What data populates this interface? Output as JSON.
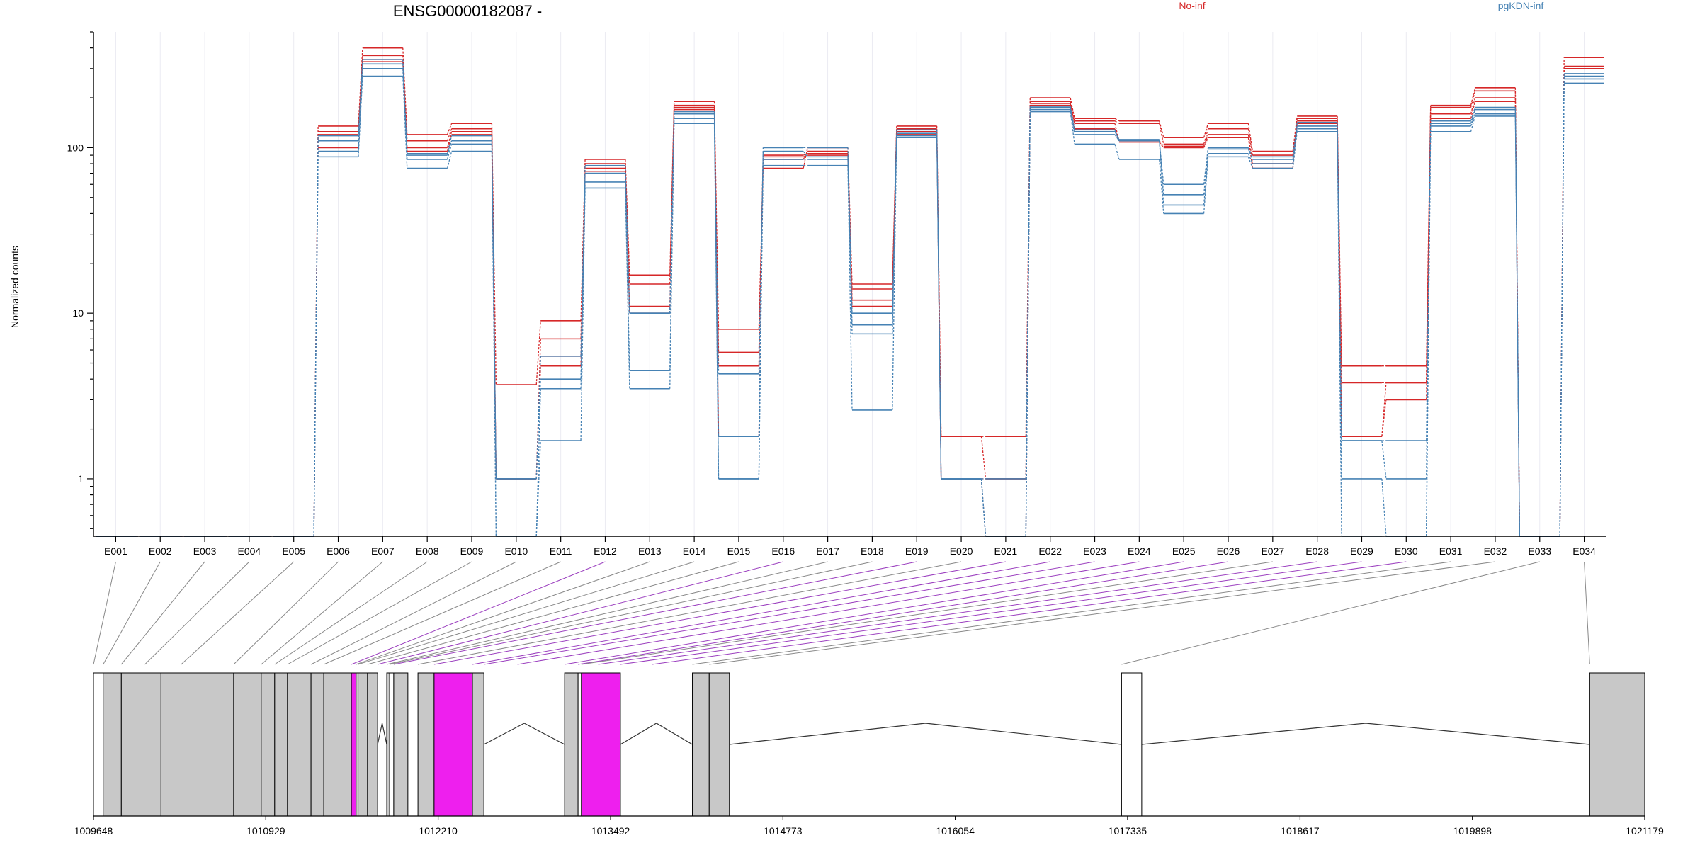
{
  "chart_data": {
    "type": "line",
    "title": "ENSG00000182087 -",
    "ylabel": "Normalized counts",
    "y_scale": "log",
    "ylim": [
      0.45,
      500
    ],
    "y_ticks": [
      {
        "value": 1,
        "label": "1"
      },
      {
        "value": 10,
        "label": "10"
      },
      {
        "value": 100,
        "label": "100"
      }
    ],
    "legend_placement": "top-right",
    "x_categories": [
      "E001",
      "E002",
      "E003",
      "E004",
      "E005",
      "E006",
      "E007",
      "E008",
      "E009",
      "E010",
      "E011",
      "E012",
      "E013",
      "E014",
      "E015",
      "E016",
      "E017",
      "E018",
      "E019",
      "E020",
      "E021",
      "E022",
      "E023",
      "E024",
      "E025",
      "E026",
      "E027",
      "E028",
      "E029",
      "E030",
      "E031",
      "E032",
      "E033",
      "E034"
    ],
    "groups": [
      {
        "name": "No-inf",
        "color": "#d62728"
      },
      {
        "name": "pgKDN-inf",
        "color": "#4682b4"
      }
    ],
    "series": [
      {
        "group": "No-inf",
        "values": [
          0.45,
          0.45,
          0.45,
          0.45,
          0.45,
          135,
          400,
          120,
          140,
          3.7,
          9,
          85,
          17,
          190,
          8,
          75,
          100,
          15,
          135,
          1.8,
          1.8,
          200,
          150,
          145,
          115,
          140,
          95,
          155,
          4.8,
          4.8,
          180,
          230,
          0.45,
          350
        ]
      },
      {
        "group": "No-inf",
        "values": [
          0.45,
          0.45,
          0.45,
          0.45,
          0.45,
          125,
          360,
          110,
          130,
          1.0,
          7,
          80,
          15,
          180,
          5.8,
          85,
          95,
          14,
          130,
          1.8,
          1.0,
          190,
          145,
          140,
          105,
          130,
          90,
          150,
          3.8,
          3.8,
          175,
          220,
          0.45,
          310
        ]
      },
      {
        "group": "No-inf",
        "values": [
          0.45,
          0.45,
          0.45,
          0.45,
          0.45,
          100,
          340,
          100,
          125,
          1.0,
          5.5,
          75,
          11,
          175,
          4.8,
          88,
          90,
          12,
          125,
          1.0,
          1.0,
          185,
          140,
          110,
          102,
          120,
          80,
          145,
          1.8,
          3.8,
          160,
          200,
          0.45,
          300
        ]
      },
      {
        "group": "No-inf",
        "values": [
          0.45,
          0.45,
          0.45,
          0.45,
          0.45,
          120,
          330,
          95,
          120,
          1.0,
          4.8,
          72,
          10,
          170,
          1.8,
          90,
          92,
          11,
          120,
          1.0,
          0.45,
          180,
          130,
          108,
          100,
          115,
          75,
          140,
          1.8,
          3.0,
          150,
          190,
          0.45,
          300
        ]
      },
      {
        "group": "pgKDN-inf",
        "values": [
          0.45,
          0.45,
          0.45,
          0.45,
          0.45,
          88,
          270,
          75,
          95,
          0.45,
          1.7,
          57,
          3.5,
          140,
          1.0,
          78,
          78,
          2.6,
          115,
          1.0,
          0.45,
          165,
          105,
          85,
          40,
          88,
          75,
          125,
          0.45,
          0.45,
          125,
          155,
          0.45,
          245
        ]
      },
      {
        "group": "pgKDN-inf",
        "values": [
          0.45,
          0.45,
          0.45,
          0.45,
          0.45,
          95,
          300,
          85,
          105,
          0.45,
          3.5,
          62,
          4.5,
          150,
          1.8,
          85,
          85,
          7.5,
          118,
          1.0,
          0.45,
          170,
          120,
          110,
          45,
          92,
          80,
          130,
          1.0,
          0.45,
          135,
          160,
          0.45,
          260
        ]
      },
      {
        "group": "pgKDN-inf",
        "values": [
          0.45,
          0.45,
          0.45,
          0.45,
          0.45,
          110,
          320,
          90,
          110,
          1.0,
          4.0,
          70,
          10,
          160,
          4.3,
          95,
          88,
          8.5,
          122,
          1.0,
          0.45,
          175,
          125,
          112,
          52,
          98,
          85,
          135,
          1.7,
          1.7,
          140,
          170,
          0.45,
          270
        ]
      },
      {
        "group": "pgKDN-inf",
        "values": [
          0.45,
          0.45,
          0.45,
          0.45,
          0.45,
          118,
          340,
          92,
          118,
          1.0,
          5.5,
          78,
          10,
          165,
          1.0,
          100,
          100,
          10,
          128,
          1.0,
          1.0,
          178,
          128,
          110,
          60,
          100,
          88,
          142,
          1.7,
          1.0,
          145,
          175,
          0.45,
          280
        ]
      }
    ],
    "gene_model": {
      "genomic_ticks": [
        "1009648",
        "1010929",
        "1012210",
        "1013492",
        "1014773",
        "1016054",
        "1017335",
        "1018617",
        "1019898",
        "1021179"
      ],
      "start": 1009648,
      "end": 1021179,
      "highlight_color": "#ee1fee",
      "exon_color": "#c8c8c8",
      "exons": [
        {
          "start": 1009648,
          "end": 1009720,
          "fill": "white"
        },
        {
          "start": 1009720,
          "end": 1009855,
          "fill": "grey"
        },
        {
          "start": 1009855,
          "end": 1010150,
          "fill": "grey"
        },
        {
          "start": 1010150,
          "end": 1010690,
          "fill": "grey"
        },
        {
          "start": 1010690,
          "end": 1010895,
          "fill": "grey"
        },
        {
          "start": 1010895,
          "end": 1010995,
          "fill": "grey"
        },
        {
          "start": 1010995,
          "end": 1011090,
          "fill": "grey"
        },
        {
          "start": 1011090,
          "end": 1011265,
          "fill": "grey"
        },
        {
          "start": 1011265,
          "end": 1011360,
          "fill": "grey"
        },
        {
          "start": 1011360,
          "end": 1011565,
          "fill": "grey"
        },
        {
          "start": 1011565,
          "end": 1011600,
          "fill": "highlight"
        },
        {
          "start": 1011600,
          "end": 1011615,
          "fill": "grey"
        },
        {
          "start": 1011615,
          "end": 1011685,
          "fill": "grey"
        },
        {
          "start": 1011685,
          "end": 1011760,
          "fill": "grey"
        },
        {
          "start": 1011828,
          "end": 1011850,
          "fill": "grey"
        },
        {
          "start": 1011850,
          "end": 1011880,
          "fill": "white"
        },
        {
          "start": 1011880,
          "end": 1011985,
          "fill": "grey"
        },
        {
          "start": 1012060,
          "end": 1012180,
          "fill": "grey"
        },
        {
          "start": 1012180,
          "end": 1012465,
          "fill": "highlight"
        },
        {
          "start": 1012465,
          "end": 1012550,
          "fill": "grey"
        },
        {
          "start": 1013150,
          "end": 1013250,
          "fill": "grey"
        },
        {
          "start": 1013250,
          "end": 1013275,
          "fill": "white"
        },
        {
          "start": 1013275,
          "end": 1013565,
          "fill": "highlight"
        },
        {
          "start": 1014100,
          "end": 1014225,
          "fill": "grey"
        },
        {
          "start": 1014225,
          "end": 1014375,
          "fill": "grey"
        },
        {
          "start": 1017290,
          "end": 1017440,
          "fill": "white"
        },
        {
          "start": 1020770,
          "end": 1021179,
          "fill": "grey"
        }
      ],
      "introns": [
        {
          "from": 1011760,
          "to": 1011828
        },
        {
          "from": 1011880,
          "to": 1011985
        },
        {
          "from": 1012550,
          "to": 1013150
        },
        {
          "from": 1013565,
          "to": 1014100
        },
        {
          "from": 1014375,
          "to": 1017290
        },
        {
          "from": 1017440,
          "to": 1020770
        }
      ],
      "connectors": [
        {
          "bin": "E001",
          "at": 1009648,
          "color": "grey"
        },
        {
          "bin": "E002",
          "at": 1009720,
          "color": "grey"
        },
        {
          "bin": "E003",
          "at": 1009855,
          "color": "grey"
        },
        {
          "bin": "E004",
          "at": 1010030,
          "color": "grey"
        },
        {
          "bin": "E005",
          "at": 1010300,
          "color": "grey"
        },
        {
          "bin": "E006",
          "at": 1010690,
          "color": "grey"
        },
        {
          "bin": "E007",
          "at": 1010895,
          "color": "grey"
        },
        {
          "bin": "E008",
          "at": 1010995,
          "color": "grey"
        },
        {
          "bin": "E009",
          "at": 1011090,
          "color": "grey"
        },
        {
          "bin": "E010",
          "at": 1011265,
          "color": "grey"
        },
        {
          "bin": "E011",
          "at": 1011360,
          "color": "grey"
        },
        {
          "bin": "E012",
          "at": 1011565,
          "color": "purple"
        },
        {
          "bin": "E013",
          "at": 1011600,
          "color": "grey"
        },
        {
          "bin": "E014",
          "at": 1011615,
          "color": "grey"
        },
        {
          "bin": "E015",
          "at": 1011685,
          "color": "grey"
        },
        {
          "bin": "E016",
          "at": 1011760,
          "color": "purple"
        },
        {
          "bin": "E017",
          "at": 1011828,
          "color": "grey"
        },
        {
          "bin": "E018",
          "at": 1011850,
          "color": "grey"
        },
        {
          "bin": "E019",
          "at": 1011880,
          "color": "purple"
        },
        {
          "bin": "E020",
          "at": 1012060,
          "color": "grey"
        },
        {
          "bin": "E021",
          "at": 1012180,
          "color": "purple"
        },
        {
          "bin": "E022",
          "at": 1012465,
          "color": "purple"
        },
        {
          "bin": "E023",
          "at": 1012550,
          "color": "purple"
        },
        {
          "bin": "E024",
          "at": 1012800,
          "color": "purple"
        },
        {
          "bin": "E025",
          "at": 1013150,
          "color": "purple"
        },
        {
          "bin": "E026",
          "at": 1013250,
          "color": "purple"
        },
        {
          "bin": "E027",
          "at": 1013275,
          "color": "grey"
        },
        {
          "bin": "E028",
          "at": 1013400,
          "color": "purple"
        },
        {
          "bin": "E029",
          "at": 1013565,
          "color": "purple"
        },
        {
          "bin": "E030",
          "at": 1013800,
          "color": "purple"
        },
        {
          "bin": "E031",
          "at": 1014100,
          "color": "grey"
        },
        {
          "bin": "E032",
          "at": 1014225,
          "color": "grey"
        },
        {
          "bin": "E033",
          "at": 1017290,
          "color": "grey"
        },
        {
          "bin": "E034",
          "at": 1020770,
          "color": "grey"
        }
      ]
    }
  }
}
